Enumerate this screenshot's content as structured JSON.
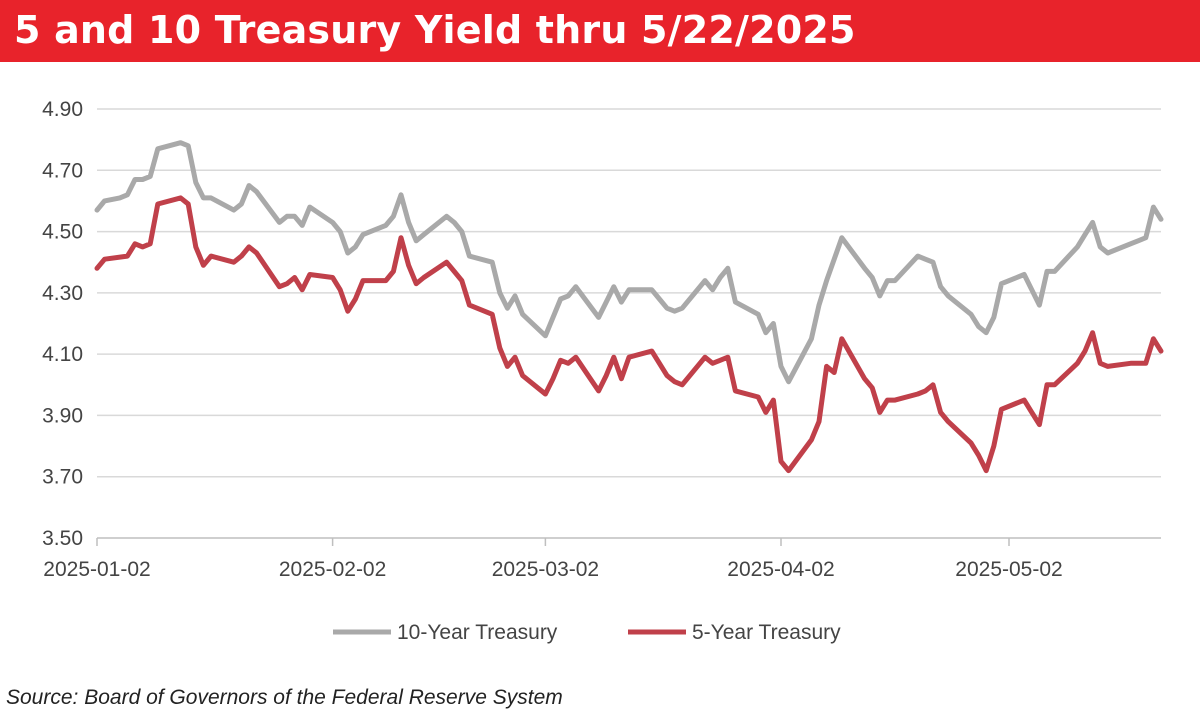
{
  "header": {
    "title": "5 and 10 Treasury Yield thru 5/22/2025"
  },
  "source": "Source: Board of Governors of the Federal Reserve System",
  "colors": {
    "title_bg": "#e8232b",
    "ten_year": "#a9a9a9",
    "five_year": "#c0404a",
    "grid": "#d9d9d9"
  },
  "chart_data": {
    "type": "line",
    "title": "5 and 10 Treasury Yield thru 5/22/2025",
    "xlabel": "",
    "ylabel": "",
    "ylim": [
      3.5,
      4.9
    ],
    "yticks": [
      "4.90",
      "4.70",
      "4.50",
      "4.30",
      "4.10",
      "3.90",
      "3.70",
      "3.50"
    ],
    "xticks": [
      {
        "label": "2025-01-02",
        "day": 0
      },
      {
        "label": "2025-02-02",
        "day": 31
      },
      {
        "label": "2025-03-02",
        "day": 59
      },
      {
        "label": "2025-04-02",
        "day": 90
      },
      {
        "label": "2025-05-02",
        "day": 120
      }
    ],
    "x_range_days": [
      0,
      140
    ],
    "grid": true,
    "legend_position": "bottom",
    "series": [
      {
        "name": "10-Year Treasury",
        "color": "#a9a9a9",
        "points": [
          [
            0,
            4.57
          ],
          [
            1,
            4.6
          ],
          [
            3,
            4.61
          ],
          [
            4,
            4.62
          ],
          [
            5,
            4.67
          ],
          [
            6,
            4.67
          ],
          [
            7,
            4.68
          ],
          [
            8,
            4.77
          ],
          [
            11,
            4.79
          ],
          [
            12,
            4.78
          ],
          [
            13,
            4.66
          ],
          [
            14,
            4.61
          ],
          [
            15,
            4.61
          ],
          [
            18,
            4.57
          ],
          [
            19,
            4.59
          ],
          [
            20,
            4.65
          ],
          [
            21,
            4.63
          ],
          [
            24,
            4.53
          ],
          [
            25,
            4.55
          ],
          [
            26,
            4.55
          ],
          [
            27,
            4.52
          ],
          [
            28,
            4.58
          ],
          [
            31,
            4.53
          ],
          [
            32,
            4.5
          ],
          [
            33,
            4.43
          ],
          [
            34,
            4.45
          ],
          [
            35,
            4.49
          ],
          [
            38,
            4.52
          ],
          [
            39,
            4.55
          ],
          [
            40,
            4.62
          ],
          [
            41,
            4.53
          ],
          [
            42,
            4.47
          ],
          [
            43,
            4.49
          ],
          [
            46,
            4.55
          ],
          [
            47,
            4.53
          ],
          [
            48,
            4.5
          ],
          [
            49,
            4.42
          ],
          [
            52,
            4.4
          ],
          [
            53,
            4.3
          ],
          [
            54,
            4.25
          ],
          [
            55,
            4.29
          ],
          [
            56,
            4.23
          ],
          [
            59,
            4.16
          ],
          [
            60,
            4.22
          ],
          [
            61,
            4.28
          ],
          [
            62,
            4.29
          ],
          [
            63,
            4.32
          ],
          [
            66,
            4.22
          ],
          [
            67,
            4.27
          ],
          [
            68,
            4.32
          ],
          [
            69,
            4.27
          ],
          [
            70,
            4.31
          ],
          [
            73,
            4.31
          ],
          [
            74,
            4.28
          ],
          [
            75,
            4.25
          ],
          [
            76,
            4.24
          ],
          [
            77,
            4.25
          ],
          [
            80,
            4.34
          ],
          [
            81,
            4.31
          ],
          [
            82,
            4.35
          ],
          [
            83,
            4.38
          ],
          [
            84,
            4.27
          ],
          [
            87,
            4.23
          ],
          [
            88,
            4.17
          ],
          [
            89,
            4.2
          ],
          [
            90,
            4.06
          ],
          [
            91,
            4.01
          ],
          [
            94,
            4.15
          ],
          [
            95,
            4.26
          ],
          [
            96,
            4.34
          ],
          [
            97,
            4.41
          ],
          [
            98,
            4.48
          ],
          [
            101,
            4.38
          ],
          [
            102,
            4.35
          ],
          [
            103,
            4.29
          ],
          [
            104,
            4.34
          ],
          [
            105,
            4.34
          ],
          [
            108,
            4.42
          ],
          [
            109,
            4.41
          ],
          [
            110,
            4.4
          ],
          [
            111,
            4.32
          ],
          [
            112,
            4.29
          ],
          [
            115,
            4.23
          ],
          [
            116,
            4.19
          ],
          [
            117,
            4.17
          ],
          [
            118,
            4.22
          ],
          [
            119,
            4.33
          ],
          [
            122,
            4.36
          ],
          [
            123,
            4.31
          ],
          [
            124,
            4.26
          ],
          [
            125,
            4.37
          ],
          [
            126,
            4.37
          ],
          [
            129,
            4.45
          ],
          [
            130,
            4.49
          ],
          [
            131,
            4.53
          ],
          [
            132,
            4.45
          ],
          [
            133,
            4.43
          ],
          [
            136,
            4.46
          ],
          [
            137,
            4.47
          ],
          [
            138,
            4.48
          ],
          [
            139,
            4.58
          ],
          [
            140,
            4.54
          ]
        ]
      },
      {
        "name": "5-Year Treasury",
        "color": "#c0404a",
        "points": [
          [
            0,
            4.38
          ],
          [
            1,
            4.41
          ],
          [
            4,
            4.42
          ],
          [
            5,
            4.46
          ],
          [
            6,
            4.45
          ],
          [
            7,
            4.46
          ],
          [
            8,
            4.59
          ],
          [
            11,
            4.61
          ],
          [
            12,
            4.59
          ],
          [
            13,
            4.45
          ],
          [
            14,
            4.39
          ],
          [
            15,
            4.42
          ],
          [
            18,
            4.4
          ],
          [
            19,
            4.42
          ],
          [
            20,
            4.45
          ],
          [
            21,
            4.43
          ],
          [
            24,
            4.32
          ],
          [
            25,
            4.33
          ],
          [
            26,
            4.35
          ],
          [
            27,
            4.31
          ],
          [
            28,
            4.36
          ],
          [
            31,
            4.35
          ],
          [
            32,
            4.31
          ],
          [
            33,
            4.24
          ],
          [
            34,
            4.28
          ],
          [
            35,
            4.34
          ],
          [
            38,
            4.34
          ],
          [
            39,
            4.37
          ],
          [
            40,
            4.48
          ],
          [
            41,
            4.39
          ],
          [
            42,
            4.33
          ],
          [
            43,
            4.35
          ],
          [
            46,
            4.4
          ],
          [
            47,
            4.37
          ],
          [
            48,
            4.34
          ],
          [
            49,
            4.26
          ],
          [
            52,
            4.23
          ],
          [
            53,
            4.12
          ],
          [
            54,
            4.06
          ],
          [
            55,
            4.09
          ],
          [
            56,
            4.03
          ],
          [
            59,
            3.97
          ],
          [
            60,
            4.02
          ],
          [
            61,
            4.08
          ],
          [
            62,
            4.07
          ],
          [
            63,
            4.09
          ],
          [
            66,
            3.98
          ],
          [
            67,
            4.03
          ],
          [
            68,
            4.09
          ],
          [
            69,
            4.02
          ],
          [
            70,
            4.09
          ],
          [
            73,
            4.11
          ],
          [
            74,
            4.07
          ],
          [
            75,
            4.03
          ],
          [
            76,
            4.01
          ],
          [
            77,
            4.0
          ],
          [
            80,
            4.09
          ],
          [
            81,
            4.07
          ],
          [
            82,
            4.08
          ],
          [
            83,
            4.09
          ],
          [
            84,
            3.98
          ],
          [
            87,
            3.96
          ],
          [
            88,
            3.91
          ],
          [
            89,
            3.95
          ],
          [
            90,
            3.75
          ],
          [
            91,
            3.72
          ],
          [
            94,
            3.82
          ],
          [
            95,
            3.88
          ],
          [
            96,
            4.06
          ],
          [
            97,
            4.04
          ],
          [
            98,
            4.15
          ],
          [
            101,
            4.02
          ],
          [
            102,
            3.99
          ],
          [
            103,
            3.91
          ],
          [
            104,
            3.95
          ],
          [
            105,
            3.95
          ],
          [
            108,
            3.97
          ],
          [
            109,
            3.98
          ],
          [
            110,
            4.0
          ],
          [
            111,
            3.91
          ],
          [
            112,
            3.88
          ],
          [
            115,
            3.81
          ],
          [
            116,
            3.77
          ],
          [
            117,
            3.72
          ],
          [
            118,
            3.8
          ],
          [
            119,
            3.92
          ],
          [
            122,
            3.95
          ],
          [
            123,
            3.91
          ],
          [
            124,
            3.87
          ],
          [
            125,
            4.0
          ],
          [
            126,
            4.0
          ],
          [
            129,
            4.07
          ],
          [
            130,
            4.11
          ],
          [
            131,
            4.17
          ],
          [
            132,
            4.07
          ],
          [
            133,
            4.06
          ],
          [
            136,
            4.07
          ],
          [
            137,
            4.07
          ],
          [
            138,
            4.07
          ],
          [
            139,
            4.15
          ],
          [
            140,
            4.11
          ]
        ]
      }
    ]
  }
}
